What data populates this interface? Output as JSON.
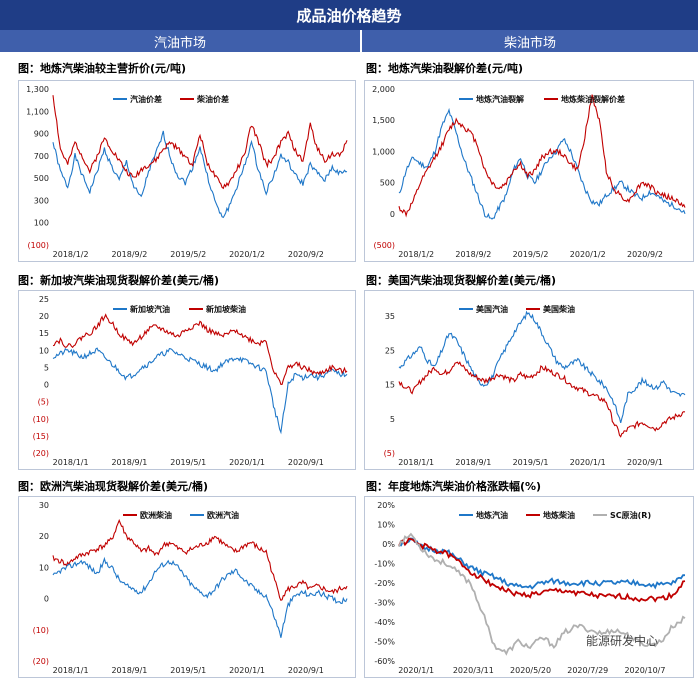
{
  "header": {
    "title": "成品油价格趋势"
  },
  "sections": {
    "gasoline": "汽油市场",
    "diesel": "柴油市场"
  },
  "watermark": "能源研发中心",
  "chart_data": [
    {
      "id": "c1",
      "type": "line",
      "title": "图：地炼汽柴油较主营折价(元/吨)",
      "ylim": [
        -100,
        1300
      ],
      "yticks": [
        "1,300",
        "1,100",
        "900",
        "700",
        "500",
        "300",
        "100",
        "(100)"
      ],
      "xticks": [
        "2018/1/2",
        "2018/9/2",
        "2019/5/2",
        "2020/1/2",
        "2020/9/2"
      ],
      "series": [
        {
          "name": "汽油价差",
          "color": "#1f77c8",
          "values": [
            820,
            560,
            420,
            700,
            520,
            380,
            560,
            760,
            600,
            480,
            650,
            420,
            320,
            560,
            720,
            900,
            680,
            520,
            460,
            600,
            780,
            520,
            300,
            140,
            250,
            420,
            600,
            820,
            560,
            380,
            520,
            700,
            640,
            520,
            450,
            620,
            540,
            480,
            600,
            540,
            560
          ]
        },
        {
          "name": "柴油价差",
          "color": "#c00000",
          "values": [
            1250,
            760,
            620,
            820,
            700,
            560,
            700,
            860,
            760,
            660,
            560,
            500,
            580,
            620,
            660,
            760,
            820,
            760,
            700,
            620,
            900,
            640,
            520,
            420,
            460,
            580,
            700,
            980,
            820,
            620,
            680,
            820,
            900,
            740,
            650,
            980,
            760,
            660,
            720,
            700,
            840
          ]
        }
      ]
    },
    {
      "id": "c2",
      "type": "line",
      "title": "图：地炼汽柴油裂解价差(元/吨)",
      "ylim": [
        -500,
        2000
      ],
      "yticks": [
        "2,000",
        "1,500",
        "1,000",
        "500",
        "0",
        "(500)"
      ],
      "xticks": [
        "2018/1/2",
        "2018/9/2",
        "2019/5/2",
        "2020/1/2",
        "2020/9/2"
      ],
      "series": [
        {
          "name": "地炼汽油裂解",
          "color": "#1f77c8",
          "values": [
            300,
            700,
            900,
            800,
            750,
            1000,
            1400,
            1650,
            1300,
            900,
            600,
            300,
            0,
            -100,
            100,
            300,
            700,
            900,
            600,
            500,
            700,
            900,
            1000,
            1200,
            1000,
            700,
            400,
            200,
            150,
            300,
            400,
            500,
            400,
            300,
            250,
            350,
            300,
            200,
            150,
            100,
            0
          ]
        },
        {
          "name": "地炼柴油裂解价差",
          "color": "#c00000",
          "values": [
            100,
            0,
            200,
            500,
            700,
            900,
            1100,
            1350,
            1500,
            1400,
            1300,
            1100,
            700,
            500,
            400,
            500,
            700,
            800,
            600,
            700,
            900,
            1000,
            1000,
            950,
            800,
            700,
            1250,
            1900,
            1500,
            700,
            400,
            300,
            200,
            350,
            500,
            450,
            350,
            300,
            250,
            200,
            100
          ]
        }
      ]
    },
    {
      "id": "c3",
      "type": "line",
      "title": "图：新加坡汽柴油现货裂解价差(美元/桶)",
      "ylim": [
        -20,
        25
      ],
      "yticks": [
        "25",
        "20",
        "15",
        "10",
        "5",
        "0",
        "(5)",
        "(10)",
        "(15)",
        "(20)"
      ],
      "xticks": [
        "2018/1/1",
        "2018/9/1",
        "2019/5/1",
        "2020/1/1",
        "2020/9/1"
      ],
      "series": [
        {
          "name": "新加坡汽油",
          "color": "#1f77c8",
          "values": [
            8,
            9,
            10,
            9,
            8,
            9,
            10,
            8,
            6,
            4,
            2,
            3,
            5,
            6,
            8,
            9,
            10,
            9,
            8,
            7,
            6,
            5,
            4,
            6,
            7,
            8,
            7,
            6,
            5,
            4,
            -6,
            -14,
            0,
            3,
            2,
            3,
            2,
            3,
            4,
            3,
            3
          ]
        },
        {
          "name": "新加坡柴油",
          "color": "#c00000",
          "values": [
            12,
            13,
            11,
            12,
            14,
            15,
            17,
            20,
            18,
            15,
            13,
            12,
            14,
            16,
            17,
            16,
            15,
            14,
            16,
            17,
            18,
            16,
            15,
            14,
            15,
            16,
            14,
            13,
            12,
            13,
            4,
            0,
            5,
            6,
            5,
            4,
            3,
            4,
            5,
            4,
            4
          ]
        }
      ]
    },
    {
      "id": "c4",
      "type": "line",
      "title": "图：美国汽柴油现货裂解价差(美元/桶)",
      "ylim": [
        -5,
        40
      ],
      "yticks": [
        "35",
        "25",
        "15",
        "5",
        "(5)"
      ],
      "xticks": [
        "2018/1/1",
        "2018/9/1",
        "2019/5/1",
        "2020/1/1",
        "2020/9/1"
      ],
      "series": [
        {
          "name": "美国汽油",
          "color": "#1f77c8",
          "values": [
            20,
            22,
            24,
            26,
            22,
            20,
            25,
            30,
            28,
            24,
            20,
            16,
            15,
            17,
            22,
            26,
            30,
            33,
            36,
            34,
            30,
            26,
            22,
            20,
            21,
            22,
            20,
            18,
            16,
            14,
            10,
            4,
            12,
            14,
            16,
            15,
            14,
            16,
            13,
            12,
            12
          ]
        },
        {
          "name": "美国柴油",
          "color": "#c00000",
          "values": [
            16,
            14,
            13,
            16,
            18,
            20,
            18,
            19,
            22,
            20,
            18,
            17,
            16,
            17,
            18,
            17,
            16,
            18,
            17,
            18,
            20,
            19,
            18,
            17,
            15,
            14,
            13,
            12,
            11,
            10,
            4,
            0,
            2,
            3,
            4,
            3,
            2,
            4,
            5,
            6,
            7
          ]
        }
      ]
    },
    {
      "id": "c5",
      "type": "line",
      "title": "图：欧洲汽柴油现货裂解价差(美元/桶)",
      "ylim": [
        -20,
        30
      ],
      "yticks": [
        "30",
        "20",
        "10",
        "0",
        "(10)",
        "(20)"
      ],
      "xticks": [
        "2018/1/1",
        "2018/9/1",
        "2019/5/1",
        "2020/1/1",
        "2020/9/1"
      ],
      "series": [
        {
          "name": "欧洲柴油",
          "color": "#c00000",
          "values": [
            13,
            12,
            11,
            13,
            14,
            15,
            16,
            17,
            19,
            25,
            20,
            18,
            15,
            16,
            14,
            17,
            18,
            16,
            15,
            16,
            17,
            18,
            20,
            18,
            16,
            15,
            17,
            18,
            16,
            15,
            7,
            0,
            3,
            4,
            5,
            3,
            4,
            3,
            2,
            3,
            4
          ]
        },
        {
          "name": "欧洲汽油",
          "color": "#1f77c8",
          "values": [
            7,
            9,
            10,
            11,
            12,
            10,
            8,
            12,
            10,
            6,
            4,
            3,
            2,
            5,
            9,
            11,
            12,
            10,
            7,
            4,
            2,
            1,
            3,
            6,
            8,
            9,
            6,
            4,
            2,
            1,
            -5,
            -12,
            -2,
            1,
            2,
            1,
            2,
            1,
            0,
            -1,
            0
          ]
        }
      ]
    },
    {
      "id": "c6",
      "type": "line",
      "title": "图：年度地炼汽柴油价格涨跌幅(%)",
      "ylim": [
        -60,
        20
      ],
      "yticks": [
        "20%",
        "10%",
        "0%",
        "-10%",
        "-20%",
        "-30%",
        "-40%",
        "-50%",
        "-60%"
      ],
      "xticks": [
        "2020/1/1",
        "2020/3/11",
        "2020/5/20",
        "2020/7/29",
        "2020/10/7"
      ],
      "series": [
        {
          "name": "地炼汽油",
          "color": "#1f77c8",
          "values": [
            0,
            2,
            -2,
            -3,
            -4,
            -8,
            -12,
            -15,
            -17,
            -20,
            -22,
            -22,
            -20,
            -19,
            -20,
            -20,
            -20,
            -20,
            -20,
            -20,
            -20,
            -21,
            -21,
            -20,
            -16
          ]
        },
        {
          "name": "地炼柴油",
          "color": "#c00000",
          "values": [
            0,
            2,
            -1,
            -3,
            -5,
            -9,
            -14,
            -18,
            -21,
            -24,
            -26,
            -26,
            -25,
            -24,
            -24,
            -25,
            -26,
            -27,
            -27,
            -27,
            -28,
            -28,
            -28,
            -26,
            -19
          ]
        },
        {
          "name": "SC原油(R)",
          "color": "#b0b0b0",
          "values": [
            0,
            5,
            -3,
            -8,
            -10,
            -15,
            -20,
            -35,
            -52,
            -56,
            -50,
            -53,
            -48,
            -52,
            -45,
            -42,
            -44,
            -46,
            -44,
            -46,
            -50,
            -52,
            -50,
            -42,
            -38
          ]
        }
      ]
    }
  ]
}
